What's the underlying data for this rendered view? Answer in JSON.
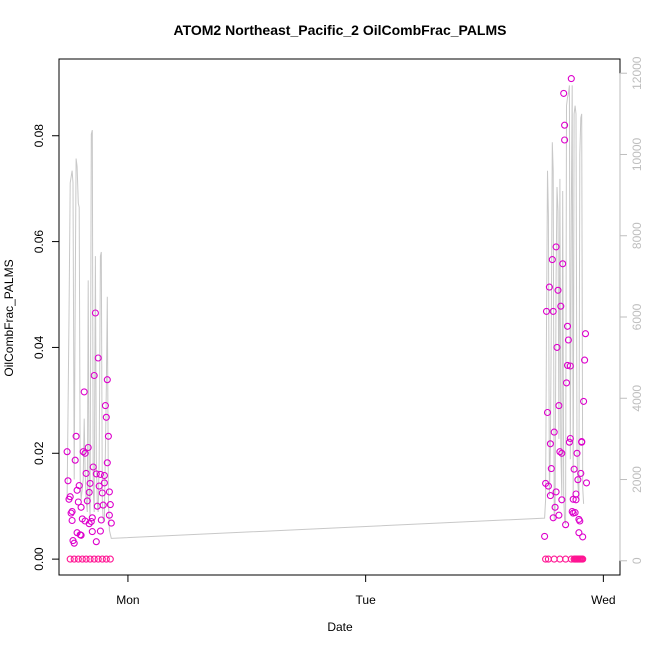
{
  "chart_data": {
    "type": "scatter",
    "title": "ATOM2 Northeast_Pacific_2 OilCombFrac_PALMS",
    "xlabel": "Date",
    "ylabel": "OilCombFrac_PALMS",
    "x_ticks": [
      "Mon",
      "Tue",
      "Wed"
    ],
    "x_range_days": [
      -0.29,
      2.07
    ],
    "ylim": [
      -0.003,
      0.0945
    ],
    "y_ticks": [
      0.0,
      0.02,
      0.04,
      0.06,
      0.08
    ],
    "y_tick_labels": [
      "0.00",
      "0.02",
      "0.04",
      "0.06",
      "0.08"
    ],
    "y2_lim": [
      -350,
      12350
    ],
    "y2_ticks": [
      0,
      2000,
      4000,
      6000,
      8000,
      10000,
      12000
    ],
    "y2_tick_labels": [
      "0",
      "2000",
      "4000",
      "6000",
      "8000",
      "10000",
      "12000"
    ],
    "grid": false,
    "colors": {
      "points": "#dd00cc",
      "points_zero": "#ff1493",
      "secondary_line": "#c8c8c8",
      "right_axis": "#bebebe"
    },
    "series": [
      {
        "values": [
          [
            -0.256,
            0.0203
          ],
          [
            -0.252,
            0.0148
          ],
          [
            -0.248,
            0.0113
          ],
          [
            -0.243,
            0.0118
          ],
          [
            -0.239,
            0.0087
          ],
          [
            -0.235,
            0.0073
          ],
          [
            -0.231,
            0.0035
          ],
          [
            -0.226,
            0.003
          ],
          [
            -0.222,
            0.0187
          ],
          [
            -0.218,
            0.0232
          ],
          [
            -0.214,
            0.013
          ],
          [
            -0.209,
            0.0108
          ],
          [
            -0.205,
            0.0139
          ],
          [
            -0.201,
            0.0046
          ],
          [
            -0.197,
            0.0098
          ],
          [
            -0.192,
            0.0076
          ],
          [
            -0.188,
            0.0203
          ],
          [
            -0.184,
            0.0316
          ],
          [
            -0.18,
            0.02
          ],
          [
            -0.176,
            0.0162
          ],
          [
            -0.171,
            0.011
          ],
          [
            -0.167,
            0.0211
          ],
          [
            -0.163,
            0.0126
          ],
          [
            -0.159,
            0.0143
          ],
          [
            -0.154,
            0.0071
          ],
          [
            -0.15,
            0.0078
          ],
          [
            -0.146,
            0.0174
          ],
          [
            -0.142,
            0.0347
          ],
          [
            -0.137,
            0.0465
          ],
          [
            -0.133,
            0.0161
          ],
          [
            -0.129,
            0.01
          ],
          [
            -0.125,
            0.038
          ],
          [
            -0.121,
            0.0138
          ],
          [
            -0.116,
            0.016
          ],
          [
            -0.112,
            0.0074
          ],
          [
            -0.108,
            0.0125
          ],
          [
            -0.104,
            0.0102
          ],
          [
            -0.099,
            0.0144
          ],
          [
            -0.095,
            0.029
          ],
          [
            -0.091,
            0.0268
          ],
          [
            -0.087,
            0.0339
          ],
          [
            -0.082,
            0.0232
          ],
          [
            -0.078,
            0.0127
          ],
          [
            -0.074,
            0.0103
          ],
          [
            -0.07,
            0.0068
          ],
          [
            -0.235,
            0.009
          ],
          [
            -0.214,
            0.005
          ],
          [
            -0.197,
            0.0045
          ],
          [
            -0.18,
            0.0072
          ],
          [
            -0.163,
            0.0067
          ],
          [
            -0.15,
            0.0052
          ],
          [
            -0.133,
            0.0033
          ],
          [
            -0.116,
            0.0053
          ],
          [
            -0.099,
            0.0158
          ],
          [
            -0.087,
            0.0182
          ],
          [
            -0.078,
            0.0083
          ],
          [
            -0.243,
            0.0
          ],
          [
            -0.226,
            0.0
          ],
          [
            -0.209,
            0.0
          ],
          [
            -0.192,
            0.0
          ],
          [
            -0.176,
            0.0
          ],
          [
            -0.159,
            0.0
          ],
          [
            -0.142,
            0.0
          ],
          [
            -0.125,
            0.0
          ],
          [
            -0.108,
            0.0
          ],
          [
            -0.091,
            0.0
          ],
          [
            -0.074,
            0.0
          ],
          [
            1.753,
            0.0043
          ],
          [
            1.757,
            0.0143
          ],
          [
            1.761,
            0.0468
          ],
          [
            1.765,
            0.0277
          ],
          [
            1.769,
            0.0138
          ],
          [
            1.773,
            0.0514
          ],
          [
            1.777,
            0.0218
          ],
          [
            1.781,
            0.0171
          ],
          [
            1.785,
            0.0566
          ],
          [
            1.789,
            0.0468
          ],
          [
            1.793,
            0.024
          ],
          [
            1.797,
            0.0098
          ],
          [
            1.801,
            0.059
          ],
          [
            1.805,
            0.04
          ],
          [
            1.809,
            0.0508
          ],
          [
            1.813,
            0.029
          ],
          [
            1.817,
            0.0203
          ],
          [
            1.821,
            0.0478
          ],
          [
            1.825,
            0.02
          ],
          [
            1.829,
            0.0558
          ],
          [
            1.833,
            0.088
          ],
          [
            1.837,
            0.0792
          ],
          [
            1.841,
            0.0065
          ],
          [
            1.845,
            0.0333
          ],
          [
            1.849,
            0.044
          ],
          [
            1.853,
            0.0414
          ],
          [
            1.857,
            0.0221
          ],
          [
            1.861,
            0.0365
          ],
          [
            1.865,
            0.0908
          ],
          [
            1.869,
            0.009
          ],
          [
            1.873,
            0.0113
          ],
          [
            1.877,
            0.017
          ],
          [
            1.881,
            0.0088
          ],
          [
            1.885,
            0.0123
          ],
          [
            1.889,
            0.02
          ],
          [
            1.893,
            0.015
          ],
          [
            1.897,
            0.0075
          ],
          [
            1.901,
            0.0072
          ],
          [
            1.905,
            0.0162
          ],
          [
            1.909,
            0.0222
          ],
          [
            1.913,
            0.0042
          ],
          [
            1.917,
            0.0298
          ],
          [
            1.921,
            0.0376
          ],
          [
            1.925,
            0.0426
          ],
          [
            1.929,
            0.0144
          ],
          [
            1.777,
            0.012
          ],
          [
            1.789,
            0.0078
          ],
          [
            1.801,
            0.0127
          ],
          [
            1.813,
            0.0083
          ],
          [
            1.825,
            0.0112
          ],
          [
            1.837,
            0.082
          ],
          [
            1.849,
            0.0366
          ],
          [
            1.861,
            0.0228
          ],
          [
            1.873,
            0.0087
          ],
          [
            1.885,
            0.0112
          ],
          [
            1.897,
            0.005
          ],
          [
            1.909,
            0.0221
          ],
          [
            1.757,
            0.0
          ],
          [
            1.769,
            0.0
          ],
          [
            1.793,
            0.0
          ],
          [
            1.817,
            0.0
          ],
          [
            1.841,
            0.0
          ],
          [
            1.865,
            0.0
          ],
          [
            1.877,
            0.0
          ],
          [
            1.881,
            0.0
          ],
          [
            1.885,
            0.0
          ],
          [
            1.889,
            0.0
          ],
          [
            1.893,
            0.0
          ],
          [
            1.897,
            0.0
          ],
          [
            1.901,
            0.0
          ],
          [
            1.905,
            0.0
          ],
          [
            1.909,
            0.0
          ],
          [
            1.913,
            0.0
          ]
        ]
      },
      {
        "axis": "right",
        "values": [
          [
            -0.256,
            1500
          ],
          [
            -0.248,
            6000
          ],
          [
            -0.243,
            9300
          ],
          [
            -0.235,
            9600
          ],
          [
            -0.231,
            9300
          ],
          [
            -0.226,
            2000
          ],
          [
            -0.222,
            6500
          ],
          [
            -0.218,
            9900
          ],
          [
            -0.214,
            9700
          ],
          [
            -0.209,
            8800
          ],
          [
            -0.205,
            8700
          ],
          [
            -0.201,
            2000
          ],
          [
            -0.197,
            1500
          ],
          [
            -0.188,
            2000
          ],
          [
            -0.184,
            3500
          ],
          [
            -0.18,
            2200
          ],
          [
            -0.176,
            1500
          ],
          [
            -0.171,
            1200
          ],
          [
            -0.167,
            6900
          ],
          [
            -0.163,
            1500
          ],
          [
            -0.159,
            1100
          ],
          [
            -0.154,
            10500
          ],
          [
            -0.15,
            10600
          ],
          [
            -0.146,
            1800
          ],
          [
            -0.142,
            1200
          ],
          [
            -0.137,
            7500
          ],
          [
            -0.133,
            2500
          ],
          [
            -0.129,
            1400
          ],
          [
            -0.125,
            1200
          ],
          [
            -0.121,
            2500
          ],
          [
            -0.116,
            7500
          ],
          [
            -0.112,
            7600
          ],
          [
            -0.108,
            1500
          ],
          [
            -0.104,
            1000
          ],
          [
            -0.099,
            1000
          ],
          [
            -0.091,
            4200
          ],
          [
            -0.087,
            6500
          ],
          [
            -0.082,
            1500
          ],
          [
            -0.078,
            750
          ],
          [
            -0.07,
            550
          ],
          [
            1.753,
            1050
          ],
          [
            1.757,
            1500
          ],
          [
            1.761,
            5800
          ],
          [
            1.765,
            9600
          ],
          [
            1.769,
            8500
          ],
          [
            1.773,
            1600
          ],
          [
            1.777,
            2800
          ],
          [
            1.781,
            5800
          ],
          [
            1.785,
            10300
          ],
          [
            1.789,
            9600
          ],
          [
            1.793,
            1000
          ],
          [
            1.797,
            1300
          ],
          [
            1.801,
            7000
          ],
          [
            1.805,
            9200
          ],
          [
            1.809,
            8600
          ],
          [
            1.813,
            3000
          ],
          [
            1.817,
            9400
          ],
          [
            1.821,
            2800
          ],
          [
            1.825,
            1600
          ],
          [
            1.829,
            9100
          ],
          [
            1.833,
            1600
          ],
          [
            1.837,
            1000
          ],
          [
            1.841,
            900
          ],
          [
            1.845,
            11200
          ],
          [
            1.849,
            11400
          ],
          [
            1.853,
            11500
          ],
          [
            1.857,
            11700
          ],
          [
            1.861,
            2500
          ],
          [
            1.865,
            8500
          ],
          [
            1.869,
            11700
          ],
          [
            1.873,
            1500
          ],
          [
            1.877,
            11000
          ],
          [
            1.881,
            11200
          ],
          [
            1.885,
            11000
          ],
          [
            1.889,
            2700
          ],
          [
            1.893,
            1900
          ],
          [
            1.897,
            1500
          ],
          [
            1.901,
            10000
          ],
          [
            1.905,
            10900
          ],
          [
            1.909,
            11000
          ],
          [
            1.913,
            1800
          ],
          [
            1.917,
            1400
          ]
        ]
      }
    ]
  }
}
